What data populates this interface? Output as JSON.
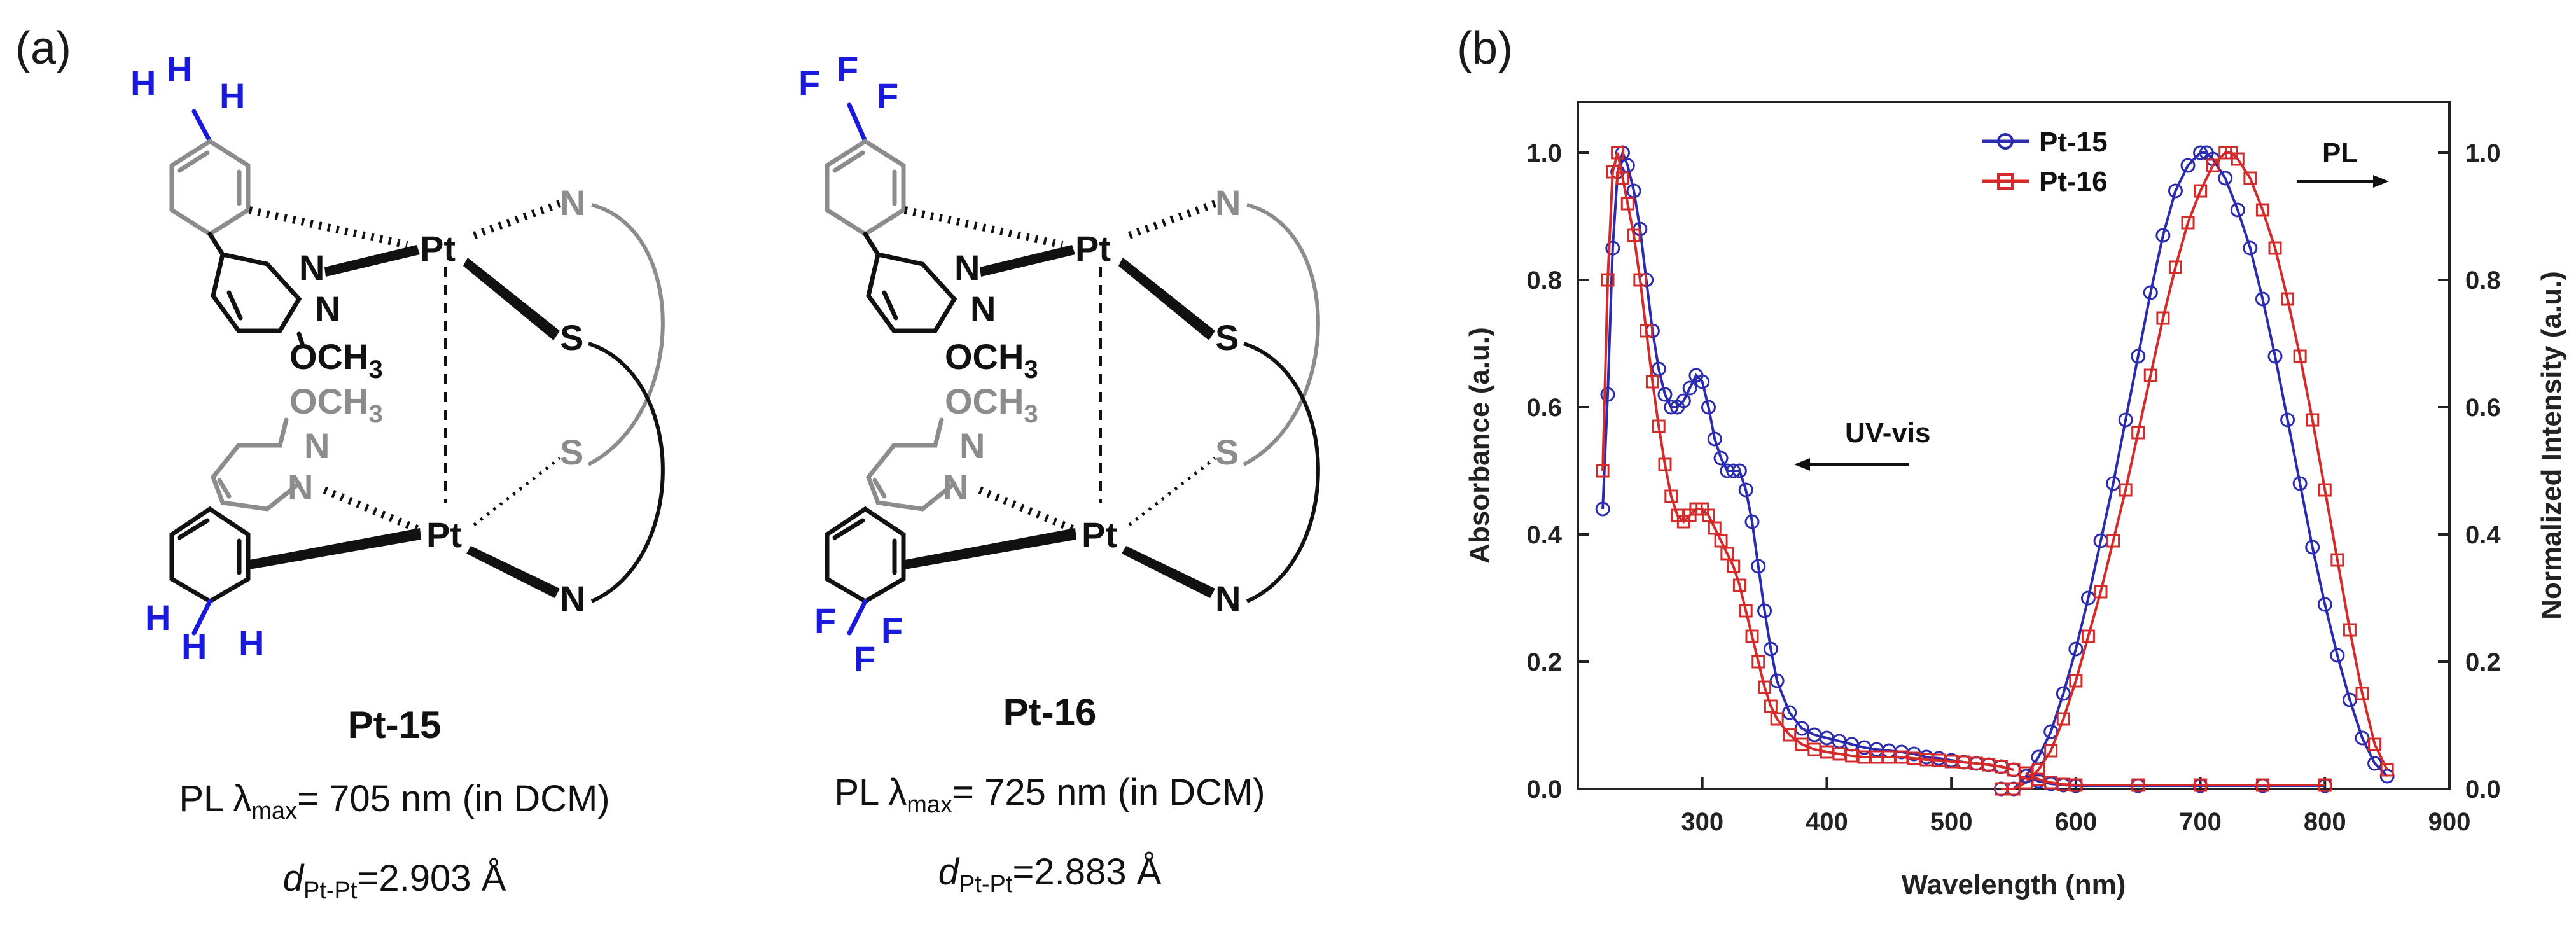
{
  "panel_a": {
    "label": "(a)",
    "complexes": [
      {
        "name": "Pt-15",
        "pl_prefix": "PL λ",
        "pl_sub": "max",
        "pl_value": "= 705 nm (in DCM)",
        "d_label": "d",
        "d_sub": "Pt-Pt",
        "d_value": "=2.903 Å",
        "atoms": {
          "pt": "Pt",
          "n": "N",
          "s": "S",
          "och3": "OCH",
          "och3_sub": "3",
          "h": "H"
        }
      },
      {
        "name": "Pt-16",
        "pl_prefix": "PL λ",
        "pl_sub": "max",
        "pl_value": "= 725 nm (in DCM)",
        "d_label": "d",
        "d_sub": "Pt-Pt",
        "d_value": "=2.883 Å",
        "atoms": {
          "pt": "Pt",
          "n": "N",
          "s": "S",
          "och3": "OCH",
          "och3_sub": "3",
          "f": "F"
        }
      }
    ]
  },
  "panel_b": {
    "label": "(b)"
  },
  "colors": {
    "pt15": "#2b2bb0",
    "pt16": "#d42a2a",
    "substituent": "#1a1adc",
    "grey": "#8c8c8c"
  },
  "chart_data": {
    "type": "line",
    "title": "",
    "xlabel": "Wavelength (nm)",
    "ylabel_left": "Absorbance (a.u.)",
    "ylabel_right": "Normalized Intensity (a.u.)",
    "xlim": [
      200,
      900
    ],
    "ylim_left": [
      0,
      1.08
    ],
    "ylim_right": [
      0,
      1.08
    ],
    "xticks": [
      "300",
      "400",
      "500",
      "600",
      "700",
      "800",
      "900"
    ],
    "yticks_left": [
      "0.0",
      "0.2",
      "0.4",
      "0.6",
      "0.8",
      "1.0"
    ],
    "yticks_right": [
      "0.0",
      "0.2",
      "0.4",
      "0.6",
      "0.8",
      "1.0"
    ],
    "legend": {
      "position": "top-center",
      "entries": [
        "Pt-15",
        "Pt-16"
      ]
    },
    "annotations": [
      {
        "text": "UV-vis",
        "arrow": "left",
        "at_x": 330,
        "at_y": 0.5
      },
      {
        "text": "PL",
        "arrow": "right",
        "at_x": 780,
        "at_y": 0.98
      }
    ],
    "series": [
      {
        "name": "Pt-15 UV-vis",
        "legend": "Pt-15",
        "axis": "left",
        "marker": "circle",
        "x": [
          220,
          224,
          228,
          232,
          236,
          240,
          245,
          250,
          255,
          260,
          265,
          270,
          275,
          280,
          285,
          290,
          295,
          300,
          305,
          310,
          315,
          320,
          325,
          330,
          335,
          340,
          345,
          350,
          355,
          360,
          370,
          380,
          390,
          400,
          410,
          420,
          430,
          440,
          450,
          460,
          470,
          480,
          490,
          500,
          510,
          520,
          530,
          540,
          550
        ],
        "y": [
          0.44,
          0.62,
          0.85,
          0.97,
          1.0,
          0.98,
          0.94,
          0.88,
          0.8,
          0.72,
          0.66,
          0.62,
          0.6,
          0.6,
          0.61,
          0.63,
          0.65,
          0.64,
          0.6,
          0.55,
          0.52,
          0.5,
          0.5,
          0.5,
          0.47,
          0.42,
          0.35,
          0.28,
          0.22,
          0.17,
          0.12,
          0.095,
          0.085,
          0.08,
          0.075,
          0.07,
          0.065,
          0.062,
          0.06,
          0.058,
          0.055,
          0.05,
          0.048,
          0.045,
          0.042,
          0.04,
          0.038,
          0.035,
          0.03
        ]
      },
      {
        "name": "Pt-16 UV-vis",
        "legend": "Pt-16",
        "axis": "left",
        "marker": "square",
        "x": [
          220,
          224,
          228,
          232,
          236,
          240,
          245,
          250,
          255,
          260,
          265,
          270,
          275,
          280,
          285,
          290,
          295,
          300,
          305,
          310,
          315,
          320,
          325,
          330,
          335,
          340,
          345,
          350,
          355,
          360,
          370,
          380,
          390,
          400,
          410,
          420,
          430,
          440,
          450,
          460,
          470,
          480,
          490,
          500,
          510,
          520,
          530,
          540,
          550
        ],
        "y": [
          0.5,
          0.8,
          0.97,
          1.0,
          0.96,
          0.92,
          0.87,
          0.8,
          0.72,
          0.64,
          0.57,
          0.51,
          0.46,
          0.43,
          0.42,
          0.43,
          0.44,
          0.44,
          0.43,
          0.41,
          0.39,
          0.37,
          0.35,
          0.32,
          0.28,
          0.24,
          0.2,
          0.16,
          0.13,
          0.11,
          0.085,
          0.07,
          0.062,
          0.058,
          0.055,
          0.052,
          0.05,
          0.05,
          0.05,
          0.05,
          0.048,
          0.046,
          0.045,
          0.043,
          0.042,
          0.04,
          0.038,
          0.035,
          0.03
        ]
      },
      {
        "name": "Pt-15 PL",
        "legend": "Pt-15",
        "axis": "right",
        "marker": "circle",
        "x": [
          540,
          550,
          560,
          570,
          580,
          590,
          600,
          610,
          620,
          630,
          640,
          650,
          660,
          670,
          680,
          690,
          700,
          705,
          710,
          720,
          730,
          740,
          750,
          760,
          770,
          780,
          790,
          800,
          810,
          820,
          830,
          840,
          850
        ],
        "y": [
          0.0,
          0.0,
          0.02,
          0.05,
          0.09,
          0.15,
          0.22,
          0.3,
          0.39,
          0.48,
          0.58,
          0.68,
          0.78,
          0.87,
          0.94,
          0.98,
          1.0,
          1.0,
          0.99,
          0.96,
          0.91,
          0.85,
          0.77,
          0.68,
          0.58,
          0.48,
          0.38,
          0.29,
          0.21,
          0.14,
          0.08,
          0.04,
          0.02
        ]
      },
      {
        "name": "Pt-16 PL",
        "legend": "Pt-16",
        "axis": "right",
        "marker": "square",
        "x": [
          540,
          550,
          560,
          570,
          580,
          590,
          600,
          610,
          620,
          630,
          640,
          650,
          660,
          670,
          680,
          690,
          700,
          710,
          720,
          725,
          730,
          740,
          750,
          760,
          770,
          780,
          790,
          800,
          810,
          820,
          830,
          840,
          850
        ],
        "y": [
          0.0,
          0.0,
          0.01,
          0.03,
          0.06,
          0.11,
          0.17,
          0.24,
          0.31,
          0.39,
          0.47,
          0.56,
          0.65,
          0.74,
          0.82,
          0.89,
          0.94,
          0.98,
          1.0,
          1.0,
          0.99,
          0.96,
          0.91,
          0.85,
          0.77,
          0.68,
          0.58,
          0.47,
          0.36,
          0.25,
          0.15,
          0.07,
          0.03
        ]
      },
      {
        "name": "Pt-15 UV-vis tail",
        "legend": "Pt-15",
        "axis": "left",
        "marker": "circle",
        "x": [
          560,
          570,
          580,
          590,
          600,
          650,
          700,
          750,
          800
        ],
        "y": [
          0.02,
          0.012,
          0.008,
          0.006,
          0.005,
          0.005,
          0.005,
          0.005,
          0.005
        ]
      },
      {
        "name": "Pt-16 UV-vis tail",
        "legend": "Pt-16",
        "axis": "left",
        "marker": "square",
        "x": [
          560,
          570,
          580,
          590,
          600,
          650,
          700,
          750,
          800
        ],
        "y": [
          0.025,
          0.015,
          0.01,
          0.007,
          0.006,
          0.006,
          0.006,
          0.006,
          0.006
        ]
      }
    ]
  }
}
